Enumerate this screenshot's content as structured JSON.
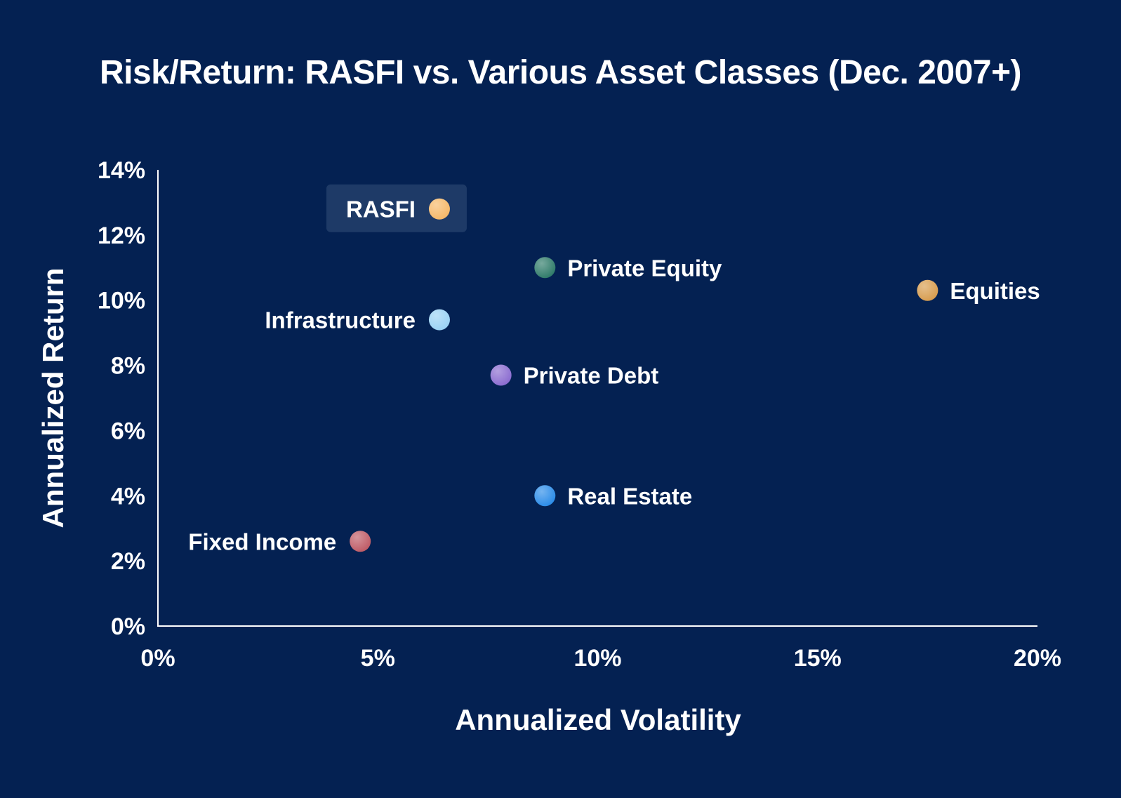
{
  "chart_data": {
    "type": "scatter",
    "title": "Risk/Return: RASFI vs. Various Asset Classes (Dec. 2007+)",
    "xlabel": "Annualized Volatility",
    "ylabel": "Annualized Return",
    "xlim": [
      0,
      20
    ],
    "ylim": [
      0,
      14
    ],
    "x_ticks": [
      "0%",
      "5%",
      "10%",
      "15%",
      "20%"
    ],
    "y_ticks": [
      "0%",
      "2%",
      "4%",
      "6%",
      "8%",
      "10%",
      "12%",
      "14%"
    ],
    "grid": false,
    "legend": "none",
    "points": [
      {
        "name": "RASFI",
        "x": 6.4,
        "y": 12.8,
        "color": "#F6B868",
        "label_side": "left",
        "highlight": true
      },
      {
        "name": "Private Equity",
        "x": 8.8,
        "y": 11.0,
        "color": "#2E7A68",
        "label_side": "right",
        "highlight": false
      },
      {
        "name": "Equities",
        "x": 17.5,
        "y": 10.3,
        "color": "#D79C4E",
        "label_side": "right",
        "highlight": false
      },
      {
        "name": "Infrastructure",
        "x": 6.4,
        "y": 9.4,
        "color": "#9AD2F4",
        "label_side": "left",
        "highlight": false
      },
      {
        "name": "Private Debt",
        "x": 7.8,
        "y": 7.7,
        "color": "#8A6BD0",
        "label_side": "right",
        "highlight": false
      },
      {
        "name": "Real Estate",
        "x": 8.8,
        "y": 4.0,
        "color": "#2A8BE8",
        "label_side": "right",
        "highlight": false
      },
      {
        "name": "Fixed Income",
        "x": 4.6,
        "y": 2.6,
        "color": "#BE5A65",
        "label_side": "left",
        "highlight": false
      }
    ],
    "colors": {
      "background": "#042152",
      "axis": "#FFFFFF",
      "text": "#FFFFFF",
      "highlight_box": "#1E3A67"
    }
  }
}
